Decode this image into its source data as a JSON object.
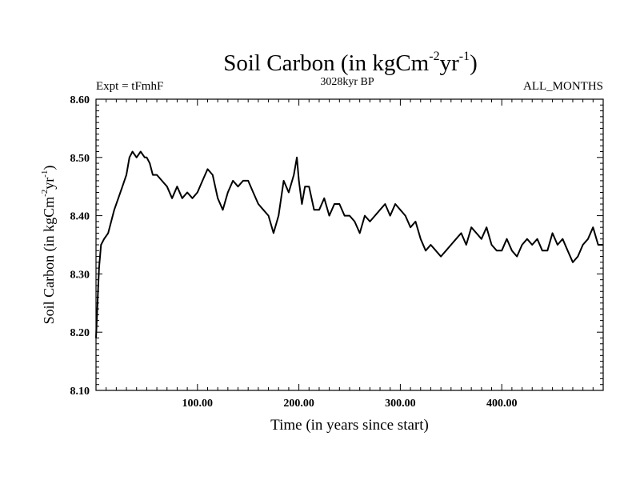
{
  "chart_data": {
    "type": "line",
    "title": {
      "main": "Soil Carbon (in kgCm",
      "exp1": "-2",
      "mid": "yr",
      "exp2": "-1",
      "end": ")"
    },
    "subtitle_left": "Expt = tFmhF",
    "subtitle_center": "3028kyr BP",
    "subtitle_right": "ALL_MONTHS",
    "xlabel": "Time (in years since start)",
    "ylabel": {
      "main": "Soil Carbon (in kgCm",
      "exp1": "-2",
      "mid": "yr",
      "exp2": "-1",
      "end": ")"
    },
    "xlim": [
      0,
      500
    ],
    "ylim": [
      8.1,
      8.6
    ],
    "x_ticks": [
      {
        "value": 100,
        "label": "100.00"
      },
      {
        "value": 200,
        "label": "200.00"
      },
      {
        "value": 300,
        "label": "300.00"
      },
      {
        "value": 400,
        "label": "400.00"
      }
    ],
    "y_ticks": [
      {
        "value": 8.1,
        "label": "8.10"
      },
      {
        "value": 8.2,
        "label": "8.20"
      },
      {
        "value": 8.3,
        "label": "8.30"
      },
      {
        "value": 8.4,
        "label": "8.40"
      },
      {
        "value": 8.5,
        "label": "8.50"
      },
      {
        "value": 8.6,
        "label": "8.60"
      }
    ],
    "series": [
      {
        "name": "Soil Carbon",
        "color": "#000000",
        "x": [
          0,
          1,
          2,
          3,
          5,
          8,
          12,
          15,
          18,
          22,
          26,
          30,
          33,
          36,
          40,
          44,
          48,
          50,
          53,
          56,
          60,
          65,
          70,
          75,
          80,
          85,
          90,
          95,
          100,
          105,
          110,
          115,
          120,
          125,
          130,
          135,
          140,
          145,
          150,
          155,
          160,
          165,
          170,
          175,
          180,
          185,
          190,
          195,
          198,
          200,
          203,
          206,
          210,
          215,
          220,
          225,
          230,
          235,
          240,
          245,
          250,
          255,
          260,
          265,
          270,
          275,
          280,
          285,
          290,
          295,
          300,
          305,
          310,
          315,
          320,
          325,
          330,
          335,
          340,
          345,
          350,
          355,
          360,
          365,
          370,
          375,
          380,
          385,
          390,
          395,
          400,
          405,
          410,
          415,
          420,
          425,
          430,
          435,
          440,
          445,
          450,
          455,
          460,
          465,
          470,
          475,
          480,
          485,
          490,
          495,
          500
        ],
        "y": [
          8.19,
          8.23,
          8.27,
          8.31,
          8.35,
          8.36,
          8.37,
          8.39,
          8.41,
          8.43,
          8.45,
          8.47,
          8.5,
          8.51,
          8.5,
          8.51,
          8.5,
          8.5,
          8.49,
          8.47,
          8.47,
          8.46,
          8.45,
          8.43,
          8.45,
          8.43,
          8.44,
          8.43,
          8.44,
          8.46,
          8.48,
          8.47,
          8.43,
          8.41,
          8.44,
          8.46,
          8.45,
          8.46,
          8.46,
          8.44,
          8.42,
          8.41,
          8.4,
          8.37,
          8.4,
          8.46,
          8.44,
          8.47,
          8.5,
          8.46,
          8.42,
          8.45,
          8.45,
          8.41,
          8.41,
          8.43,
          8.4,
          8.42,
          8.42,
          8.4,
          8.4,
          8.39,
          8.37,
          8.4,
          8.39,
          8.4,
          8.41,
          8.42,
          8.4,
          8.42,
          8.41,
          8.4,
          8.38,
          8.39,
          8.36,
          8.34,
          8.35,
          8.34,
          8.33,
          8.34,
          8.35,
          8.36,
          8.37,
          8.35,
          8.38,
          8.37,
          8.36,
          8.38,
          8.35,
          8.34,
          8.34,
          8.36,
          8.34,
          8.33,
          8.35,
          8.36,
          8.35,
          8.36,
          8.34,
          8.34,
          8.37,
          8.35,
          8.36,
          8.34,
          8.32,
          8.33,
          8.35,
          8.36,
          8.38,
          8.35,
          8.35
        ]
      }
    ]
  }
}
